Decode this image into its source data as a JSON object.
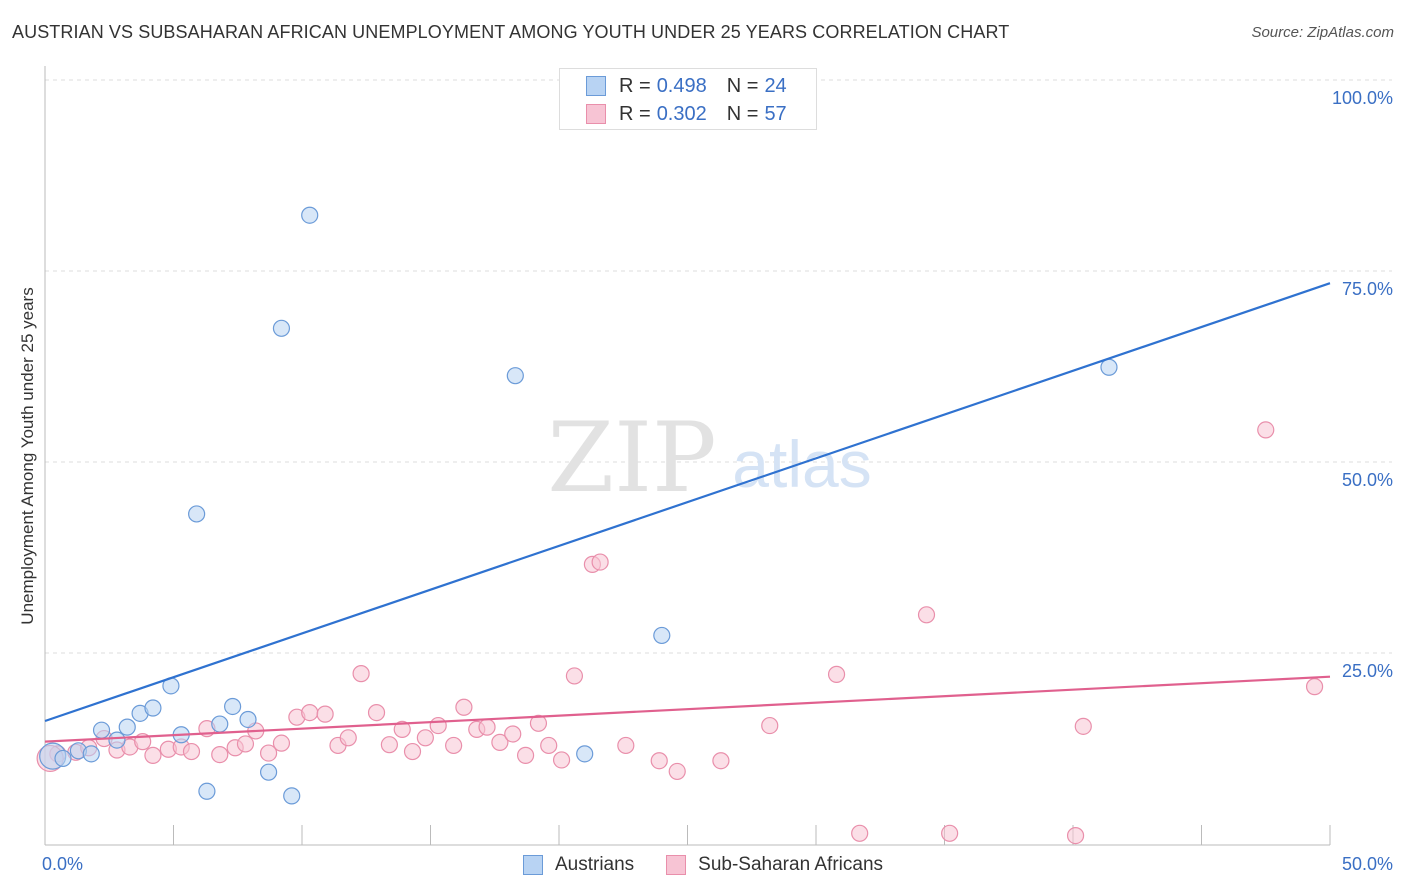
{
  "header": {
    "title": "AUSTRIAN VS SUBSAHARAN AFRICAN UNEMPLOYMENT AMONG YOUTH UNDER 25 YEARS CORRELATION CHART",
    "source": "Source: ZipAtlas.com"
  },
  "watermark": {
    "zip": "ZIP",
    "atlas": "atlas"
  },
  "colors": {
    "austrians_fill": "#b8d3f3",
    "austrians_stroke": "#6b9bd8",
    "austrians_line": "#2f72d0",
    "ssa_fill": "#f7c4d4",
    "ssa_stroke": "#e98fab",
    "ssa_line": "#e0608e",
    "axis_text": "#3a6fc4",
    "grid": "#dddddd"
  },
  "legend_top": {
    "rows": [
      {
        "r_label": "R =",
        "r_value": "0.498",
        "n_label": "N =",
        "n_value": "24"
      },
      {
        "r_label": "R =",
        "r_value": "0.302",
        "n_label": "N =",
        "n_value": "57"
      }
    ]
  },
  "chart_data": {
    "type": "scatter",
    "title": "AUSTRIAN VS SUBSAHARAN AFRICAN UNEMPLOYMENT AMONG YOUTH UNDER 25 YEARS CORRELATION CHART",
    "xlabel": "",
    "ylabel": "Unemployment Among Youth under 25 years",
    "xlim": [
      0,
      50
    ],
    "ylim": [
      0,
      100
    ],
    "x_tick_labels": [
      "0.0%",
      "50.0%"
    ],
    "y_tick_labels": [
      "100.0%",
      "75.0%",
      "50.0%",
      "25.0%"
    ],
    "y_ticks": [
      100,
      75,
      50,
      25
    ],
    "legend": [
      "Austrians",
      "Sub-Saharan Africans"
    ],
    "legend_position": "bottom-center",
    "series": [
      {
        "name": "Austrians",
        "r": 0.498,
        "n": 24,
        "trend": {
          "x": [
            0,
            50
          ],
          "y": [
            16.1,
            73.4
          ]
        },
        "points": [
          [
            0.3,
            11.5
          ],
          [
            0.7,
            11.2
          ],
          [
            1.3,
            12.2
          ],
          [
            1.8,
            11.8
          ],
          [
            2.2,
            14.9
          ],
          [
            2.8,
            13.6
          ],
          [
            3.2,
            15.3
          ],
          [
            3.7,
            17.1
          ],
          [
            4.2,
            17.8
          ],
          [
            4.9,
            20.7
          ],
          [
            5.3,
            14.3
          ],
          [
            5.9,
            43.2
          ],
          [
            6.3,
            6.9
          ],
          [
            6.8,
            15.7
          ],
          [
            7.3,
            18.0
          ],
          [
            7.9,
            16.3
          ],
          [
            8.7,
            9.4
          ],
          [
            9.2,
            67.5
          ],
          [
            9.6,
            6.3
          ],
          [
            10.3,
            82.3
          ],
          [
            18.3,
            61.3
          ],
          [
            21.0,
            11.8
          ],
          [
            24.0,
            27.3
          ],
          [
            41.4,
            62.4
          ]
        ]
      },
      {
        "name": "Sub-Saharan Africans",
        "r": 0.302,
        "n": 57,
        "trend": {
          "x": [
            0,
            50
          ],
          "y": [
            13.4,
            21.9
          ]
        },
        "points": [
          [
            0.5,
            11.8
          ],
          [
            1.2,
            12.0
          ],
          [
            1.7,
            12.6
          ],
          [
            2.3,
            13.8
          ],
          [
            2.8,
            12.3
          ],
          [
            3.3,
            12.7
          ],
          [
            3.8,
            13.4
          ],
          [
            4.2,
            11.6
          ],
          [
            4.8,
            12.4
          ],
          [
            5.3,
            12.7
          ],
          [
            5.7,
            12.1
          ],
          [
            6.3,
            15.1
          ],
          [
            6.8,
            11.7
          ],
          [
            7.4,
            12.6
          ],
          [
            7.8,
            13.1
          ],
          [
            8.2,
            14.8
          ],
          [
            8.7,
            11.9
          ],
          [
            9.2,
            13.2
          ],
          [
            9.8,
            16.6
          ],
          [
            10.3,
            17.2
          ],
          [
            10.9,
            17.0
          ],
          [
            11.4,
            12.9
          ],
          [
            11.8,
            13.9
          ],
          [
            12.3,
            22.3
          ],
          [
            12.9,
            17.2
          ],
          [
            13.4,
            13.0
          ],
          [
            13.9,
            15.0
          ],
          [
            14.3,
            12.1
          ],
          [
            14.8,
            13.9
          ],
          [
            15.3,
            15.5
          ],
          [
            15.9,
            12.9
          ],
          [
            16.3,
            17.9
          ],
          [
            16.8,
            15.0
          ],
          [
            17.2,
            15.3
          ],
          [
            17.7,
            13.3
          ],
          [
            18.2,
            14.4
          ],
          [
            18.7,
            11.6
          ],
          [
            19.2,
            15.8
          ],
          [
            19.6,
            12.9
          ],
          [
            20.1,
            11.0
          ],
          [
            20.6,
            22.0
          ],
          [
            21.3,
            36.6
          ],
          [
            21.6,
            36.9
          ],
          [
            22.6,
            12.9
          ],
          [
            23.9,
            10.9
          ],
          [
            24.6,
            9.5
          ],
          [
            26.3,
            10.9
          ],
          [
            28.2,
            15.5
          ],
          [
            30.8,
            22.2
          ],
          [
            31.7,
            1.4
          ],
          [
            34.3,
            30.0
          ],
          [
            35.2,
            1.4
          ],
          [
            40.1,
            1.1
          ],
          [
            40.4,
            15.4
          ],
          [
            47.5,
            54.2
          ],
          [
            49.4,
            20.6
          ],
          [
            0.2,
            11.2
          ]
        ]
      }
    ]
  },
  "bottom_legend": {
    "austrians": "Austrians",
    "ssa": "Sub-Saharan Africans"
  }
}
